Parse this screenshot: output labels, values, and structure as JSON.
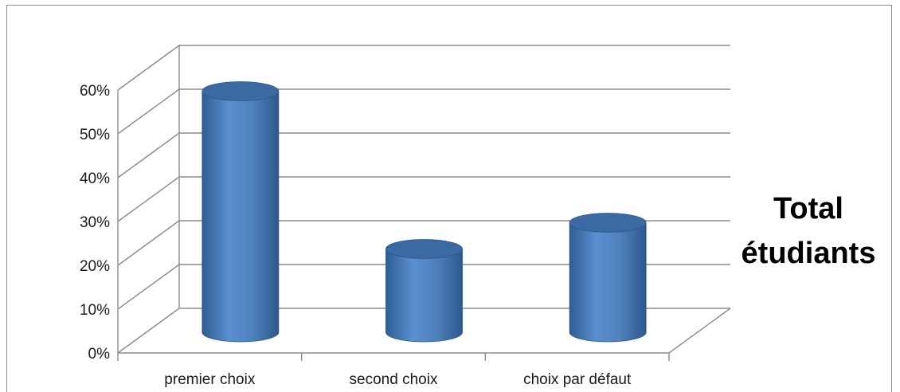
{
  "chart_data": {
    "type": "bar",
    "style": "3d-cylinder",
    "categories": [
      "premier choix",
      "second choix",
      "choix par défaut"
    ],
    "series": [
      {
        "name": "Total étudiants",
        "values": [
          0.55,
          0.19,
          0.25
        ],
        "color": "#4f81bd"
      }
    ],
    "y_ticks": [
      "0%",
      "10%",
      "20%",
      "30%",
      "40%",
      "50%",
      "60%"
    ],
    "ylim": [
      0,
      0.6
    ],
    "grid": true,
    "legend_position": "right"
  },
  "legend": {
    "line1": "Total",
    "line2": "étudiants"
  }
}
